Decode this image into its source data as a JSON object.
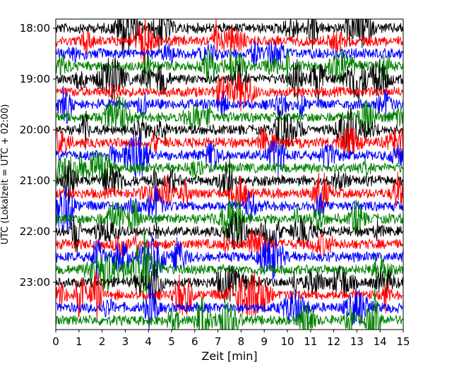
{
  "chart_data": {
    "type": "line",
    "xlabel": "Zeit  [min]",
    "ylabel": "UTC (Lokalzeit = UTC + 02:00)",
    "xlim": [
      0,
      15
    ],
    "x_ticks": [
      0,
      1,
      2,
      3,
      4,
      5,
      6,
      7,
      8,
      9,
      10,
      11,
      12,
      13,
      14,
      15
    ],
    "y_tick_labels": [
      "18:00",
      "19:00",
      "20:00",
      "21:00",
      "22:00",
      "23:00"
    ],
    "ylim": [
      "17:45",
      "23:59"
    ],
    "trace_interval_min": 15,
    "trace_count": 24,
    "first_trace": "18:00",
    "last_trace": "23:45",
    "trace_color_cycle": [
      "#000000",
      "#ff0000",
      "#0000ff",
      "#008000"
    ],
    "grid": false,
    "legend": "none"
  }
}
